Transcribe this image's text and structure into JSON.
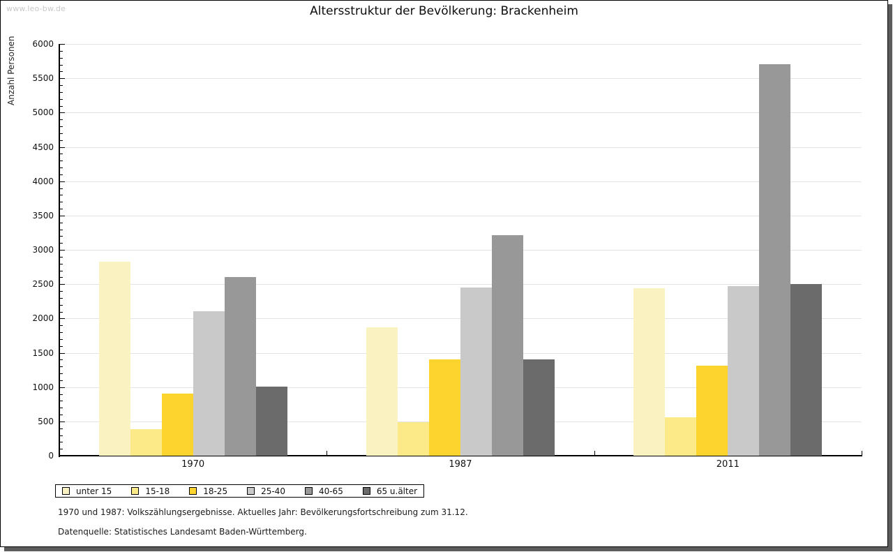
{
  "watermark": "www.leo-bw.de",
  "title": "Altersstruktur der Bevölkerung: Brackenheim",
  "chart_data": {
    "type": "bar",
    "title": "Altersstruktur der Bevölkerung: Brackenheim",
    "xlabel": "",
    "ylabel": "Anzahl Personen",
    "ylim": [
      0,
      6000
    ],
    "ytick_major_step": 500,
    "ytick_minor_step": 100,
    "grid": true,
    "legend_position": "bottom-left",
    "categories": [
      "1970",
      "1987",
      "2011"
    ],
    "series": [
      {
        "name": "unter 15",
        "color": "#fbf2c2",
        "values": [
          2830,
          1870,
          2440
        ]
      },
      {
        "name": "15-18",
        "color": "#fce988",
        "values": [
          390,
          490,
          560
        ]
      },
      {
        "name": "18-25",
        "color": "#fcd42d",
        "values": [
          900,
          1400,
          1310
        ]
      },
      {
        "name": "25-40",
        "color": "#c9c9c9",
        "values": [
          2100,
          2450,
          2470
        ]
      },
      {
        "name": "40-65",
        "color": "#989898",
        "values": [
          2600,
          3210,
          5700
        ]
      },
      {
        "name": "65 u.älter",
        "color": "#6b6b6b",
        "values": [
          1010,
          1400,
          2500
        ]
      }
    ]
  },
  "footnotes": [
    "1970 und 1987: Volkszählungsergebnisse. Aktuelles Jahr: Bevölkerungsfortschreibung zum 31.12.",
    "Datenquelle: Statistisches Landesamt Baden-Württemberg."
  ]
}
